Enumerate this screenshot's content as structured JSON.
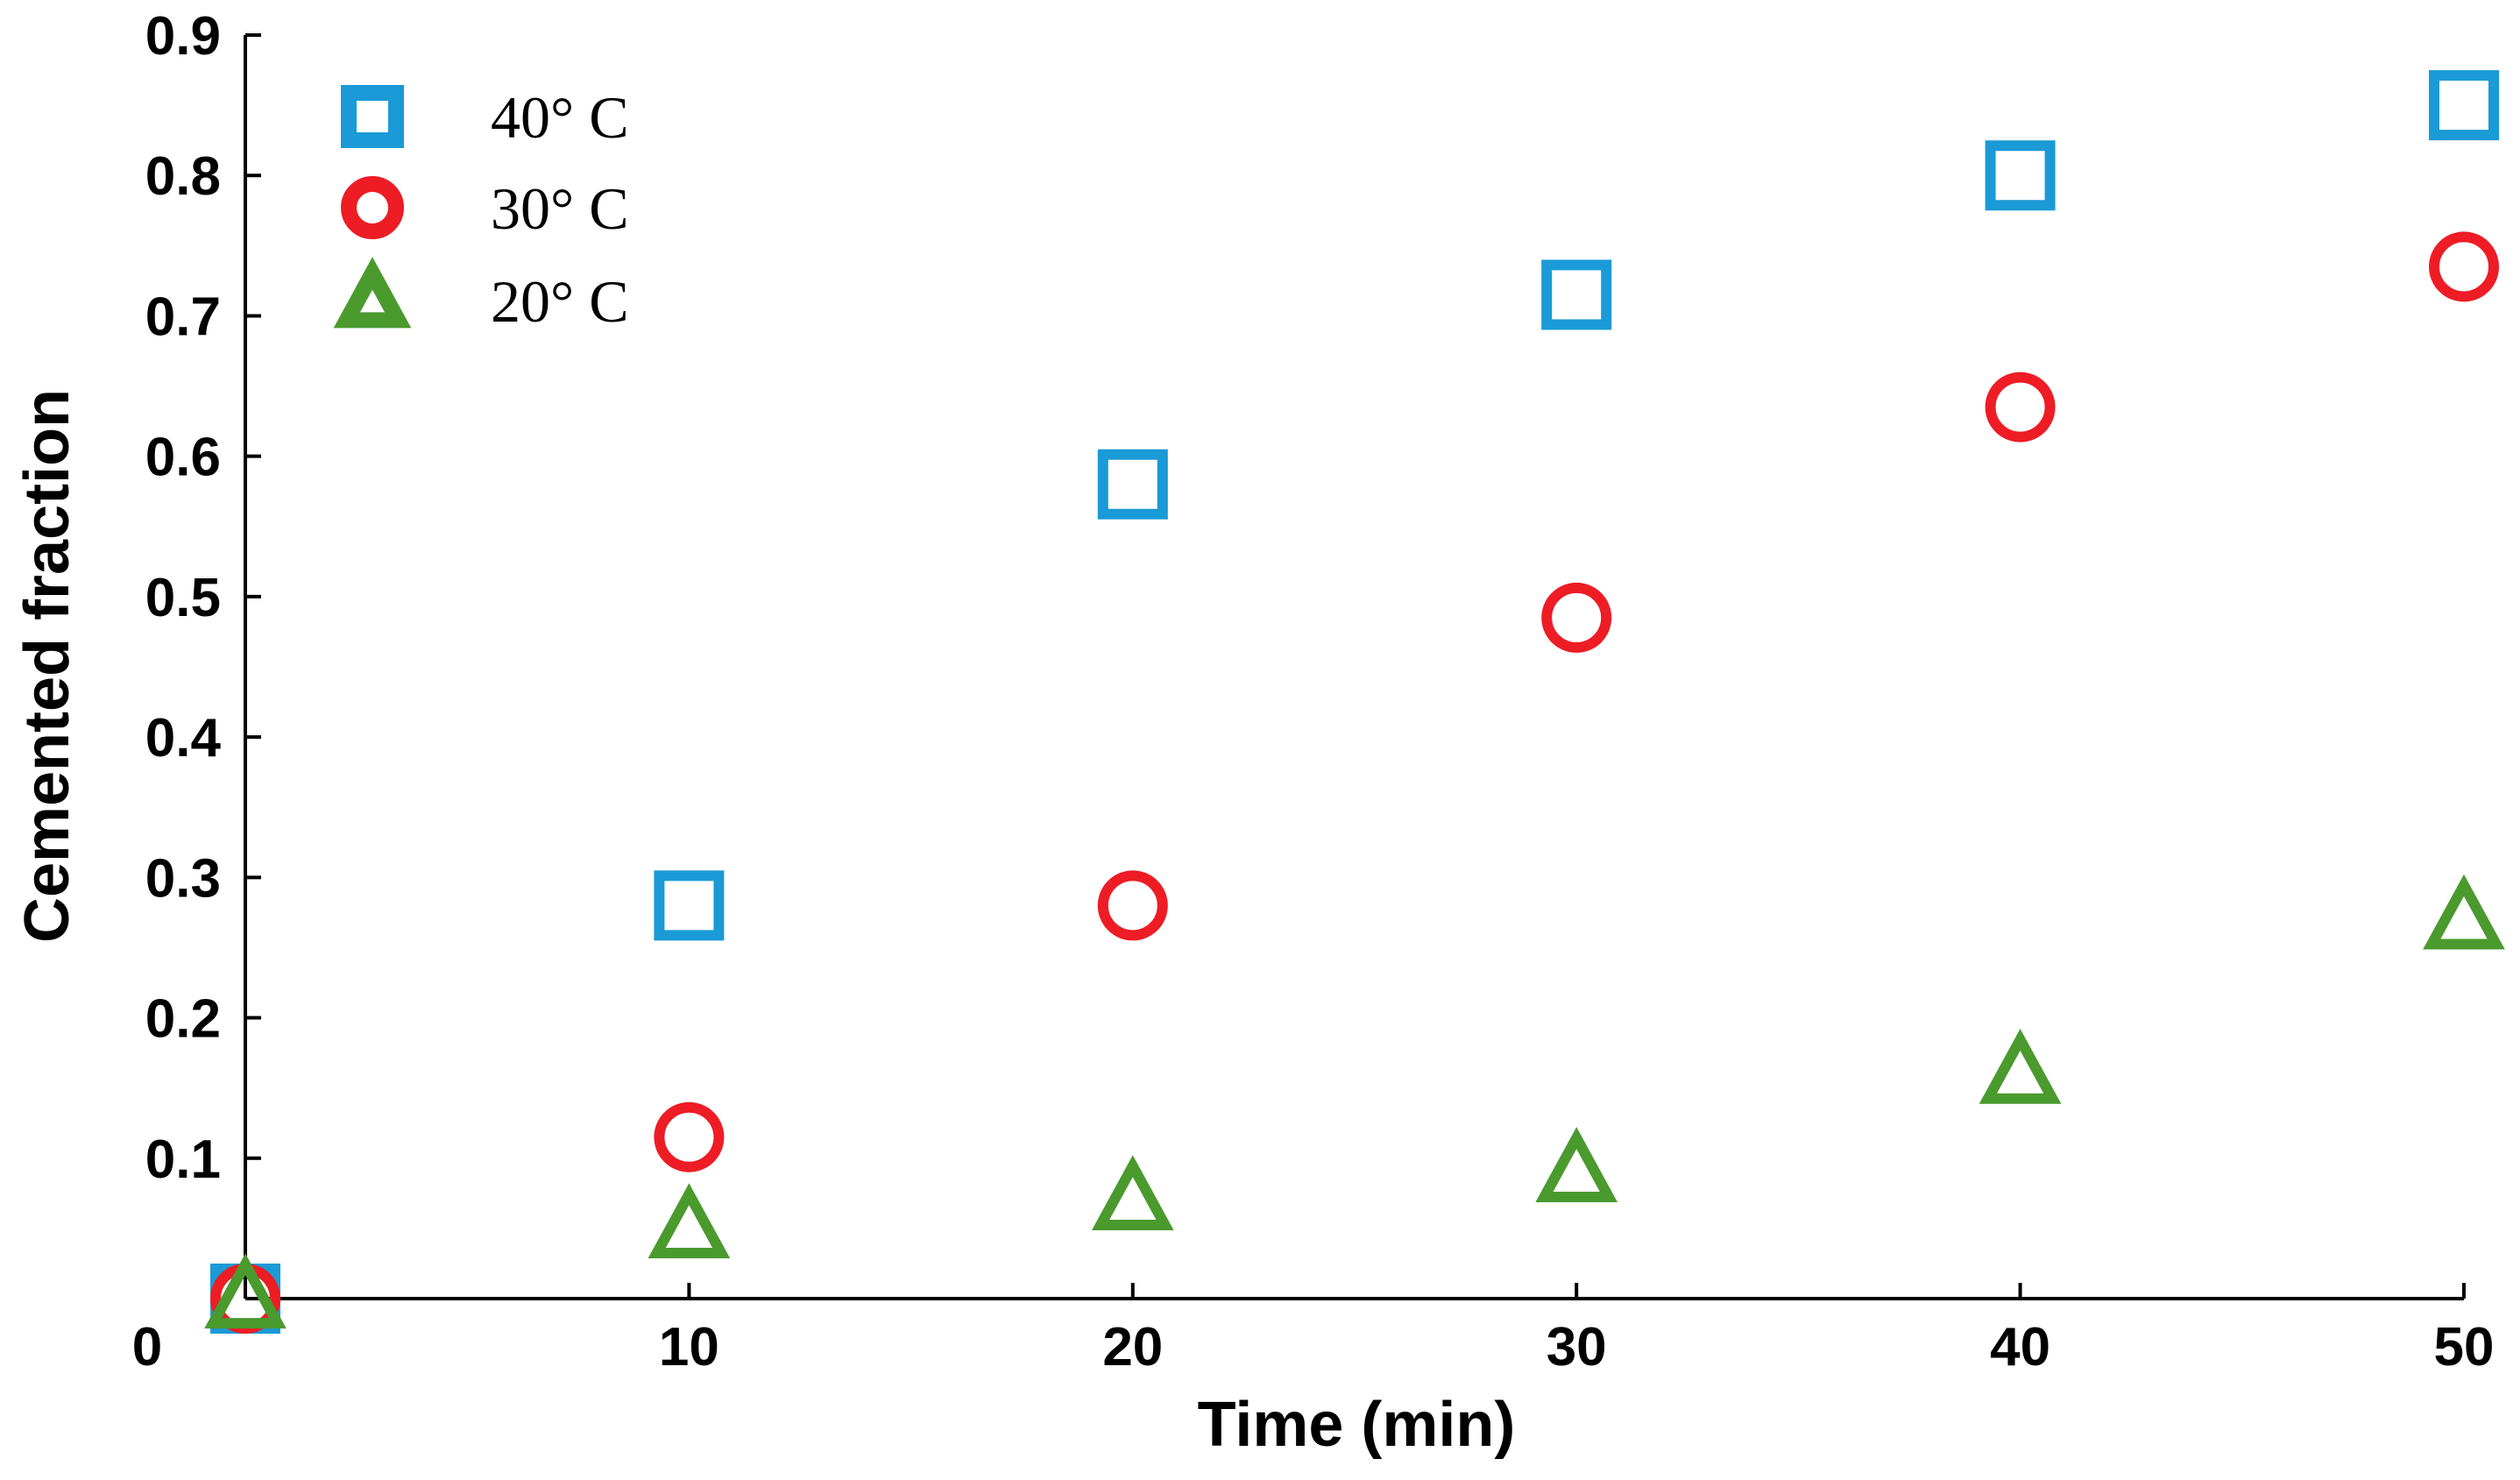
{
  "chart_data": {
    "type": "scatter",
    "title": "",
    "xlabel": "Time (min)",
    "ylabel": "Cemented fraction",
    "xlim": [
      0,
      50
    ],
    "ylim": [
      0,
      0.9
    ],
    "x_ticks": [
      10,
      20,
      30,
      40,
      50
    ],
    "x_tick_labels": [
      "10",
      "20",
      "30",
      "40",
      "50"
    ],
    "y_ticks": [
      0.1,
      0.2,
      0.3,
      0.4,
      0.5,
      0.6,
      0.7,
      0.8,
      0.9
    ],
    "y_tick_labels": [
      "0.1",
      "0.2",
      "0.3",
      "0.4",
      "0.5",
      "0.6",
      "0.7",
      "0.8",
      "0.9"
    ],
    "origin_label": "0",
    "grid": false,
    "legend_position": "top-left",
    "series": [
      {
        "name": "40° C",
        "marker": "square",
        "color": "#1a9ad6",
        "x": [
          0,
          10,
          20,
          30,
          40,
          50
        ],
        "y": [
          0.0,
          0.28,
          0.58,
          0.715,
          0.8,
          0.85
        ]
      },
      {
        "name": "30° C",
        "marker": "circle",
        "color": "#ee1c25",
        "x": [
          0,
          10,
          20,
          30,
          40,
          50
        ],
        "y": [
          0.0,
          0.115,
          0.28,
          0.485,
          0.635,
          0.735
        ]
      },
      {
        "name": "20° C",
        "marker": "triangle",
        "color": "#4a9a2e",
        "x": [
          0,
          10,
          20,
          30,
          40,
          50
        ],
        "y": [
          0.0,
          0.05,
          0.07,
          0.09,
          0.16,
          0.27
        ]
      }
    ]
  }
}
